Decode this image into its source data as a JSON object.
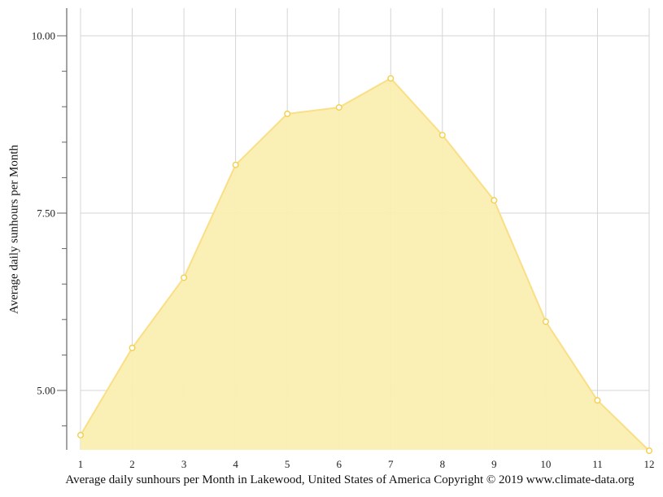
{
  "chart_data": {
    "type": "area",
    "title": "Average daily sunhours per Month in Lakewood, United States of America Copyright © 2019 www.climate-data.org",
    "xlabel": "",
    "ylabel": "Average daily sunhours per Month",
    "categories": [
      "1",
      "2",
      "3",
      "4",
      "5",
      "6",
      "7",
      "8",
      "9",
      "10",
      "11",
      "12"
    ],
    "series": [
      {
        "name": "Average daily sunhours",
        "values": [
          4.37,
          5.6,
          6.59,
          8.18,
          8.9,
          8.99,
          9.4,
          8.6,
          7.68,
          5.97,
          4.86,
          4.15
        ]
      }
    ],
    "yticks_major": [
      5.0,
      7.5,
      10.0
    ],
    "ytick_labels": [
      "5.00",
      "7.50",
      "10.00"
    ],
    "ylim": [
      4.16,
      10.39
    ],
    "grid": true,
    "legend": "none"
  },
  "colors": {
    "fill": "#faeeb0",
    "line": "#f9df86",
    "marker_stroke": "#f4cf4c",
    "marker_fill": "#ffffff",
    "grid": "#d5d5d5",
    "axis": "#666666"
  },
  "caption": "Average daily sunhours per Month in Lakewood, United States of America Copyright © 2019 www.climate-data.org",
  "y_axis_title": "Average daily sunhours per Month"
}
